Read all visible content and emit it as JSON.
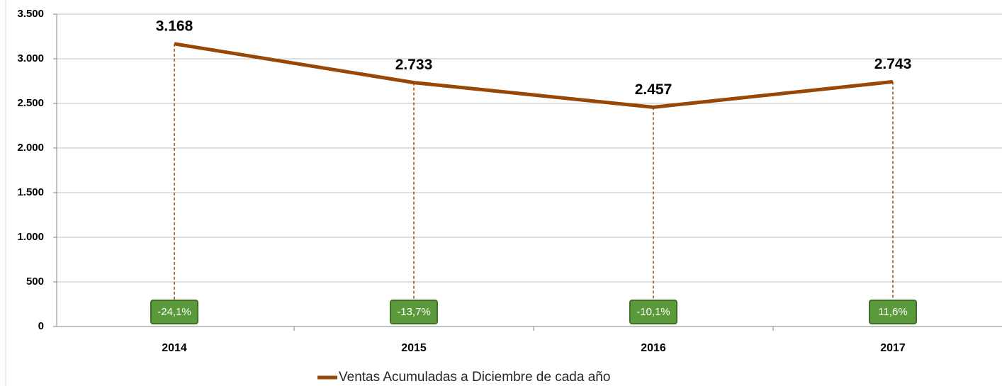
{
  "chart_data": {
    "type": "line",
    "categories": [
      "2014",
      "2015",
      "2016",
      "2017"
    ],
    "series": [
      {
        "name": "Ventas Acumuladas a Diciembre de cada año",
        "color": "#974706",
        "values": [
          3168,
          2733,
          2457,
          2743
        ],
        "value_labels": [
          "3.168",
          "2.733",
          "2.457",
          "2.743"
        ]
      }
    ],
    "annotations": [
      "-24,1%",
      "-13,7%",
      "-10,1%",
      "11,6%"
    ],
    "ylim": [
      0,
      3500
    ],
    "yticks": [
      0,
      500,
      {
        "value": 1000,
        "label": "1.000"
      },
      {
        "value": 1500,
        "label": "1.500"
      },
      {
        "value": 2000,
        "label": "2.000"
      },
      {
        "value": 2500,
        "label": "2.500"
      },
      {
        "value": 3000,
        "label": "3.000"
      },
      {
        "value": 3500,
        "label": "3.500"
      }
    ],
    "grid": true,
    "legend": "bottom"
  }
}
